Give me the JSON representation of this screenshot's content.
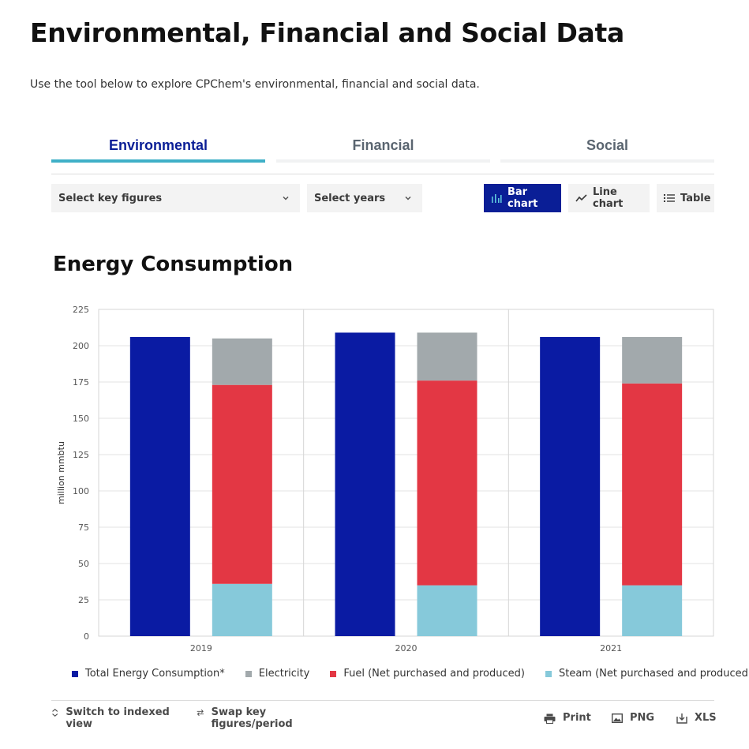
{
  "page": {
    "title": "Environmental, Financial and Social Data",
    "intro": "Use the tool below to explore CPChem's environmental, financial and social data."
  },
  "tabs": [
    {
      "label": "Environmental",
      "active": true
    },
    {
      "label": "Financial",
      "active": false
    },
    {
      "label": "Social",
      "active": false
    }
  ],
  "filters": {
    "key_figures": "Select key figures",
    "years": "Select years"
  },
  "view_toggle": {
    "bar": "Bar chart",
    "line": "Line chart",
    "table": "Table",
    "selected": "bar"
  },
  "chart_data": {
    "type": "bar",
    "title": "Energy Consumption",
    "ylabel": "million mmbtu",
    "xlabel": "",
    "categories": [
      "2019",
      "2020",
      "2021"
    ],
    "ylim": [
      0,
      225
    ],
    "yticks": [
      0,
      25,
      50,
      75,
      100,
      125,
      150,
      175,
      200,
      225
    ],
    "grid": true,
    "legend_position": "bottom",
    "series": [
      {
        "name": "Total Energy Consumption*",
        "color": "#0a1ba3",
        "stack": "total",
        "values": [
          206,
          209,
          206
        ]
      },
      {
        "name": "Steam (Net purchased and produced)",
        "color": "#86c9da",
        "stack": "breakdown",
        "values": [
          36,
          35,
          35
        ]
      },
      {
        "name": "Fuel (Net purchased and produced)",
        "color": "#e33744",
        "stack": "breakdown",
        "values": [
          137,
          141,
          139
        ]
      },
      {
        "name": "Electricity",
        "color": "#a2a9ac",
        "stack": "breakdown",
        "values": [
          32,
          33,
          32
        ]
      }
    ]
  },
  "legend": [
    {
      "label": "Total Energy Consumption*",
      "color": "#0a1ba3"
    },
    {
      "label": "Electricity",
      "color": "#a2a9ac"
    },
    {
      "label": "Fuel (Net purchased and produced)",
      "color": "#e33744"
    },
    {
      "label": "Steam (Net purchased and produced)",
      "color": "#86c9da"
    }
  ],
  "footer": {
    "indexed": "Switch to indexed view",
    "swap": "Swap key figures/period",
    "print": "Print",
    "png": "PNG",
    "xls": "XLS"
  }
}
